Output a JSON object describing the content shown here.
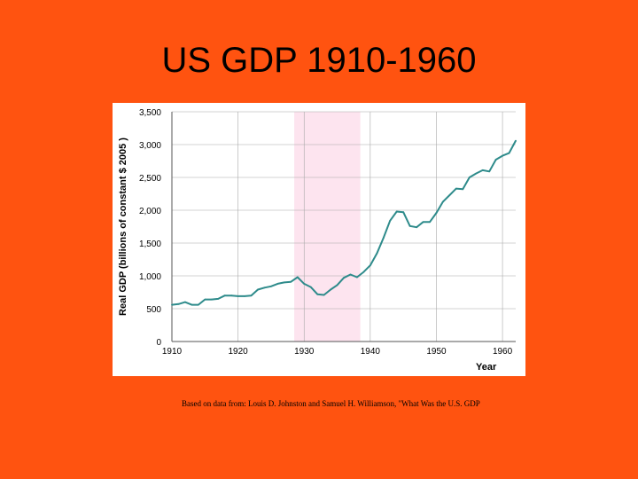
{
  "slide": {
    "title": "US GDP 1910-1960",
    "source_note": "Based on data from: Louis D. Johnston and Samuel H. Williamson, \"What Was the U.S. GDP"
  },
  "colors": {
    "background": "#ff5310",
    "line": "#2e8b8b",
    "shade": "#fde4ef",
    "grid": "#a8a8a8"
  },
  "chart_data": {
    "type": "line",
    "title": "",
    "xlabel": "Year",
    "ylabel": "Real GDP (billions of constant $ 2005 )",
    "xlim": [
      1910,
      1962
    ],
    "ylim": [
      0,
      3500
    ],
    "xticks": [
      1910,
      1920,
      1930,
      1940,
      1950,
      1960
    ],
    "yticks": [
      0,
      500,
      1000,
      1500,
      2000,
      2500,
      3000,
      3500
    ],
    "ytick_labels": [
      "0",
      "500",
      "1,000",
      "1,500",
      "2,000",
      "2,500",
      "3,000",
      "3,500"
    ],
    "grid": true,
    "shaded_region": {
      "from": 1928.5,
      "to": 1938.5
    },
    "series": [
      {
        "name": "Real GDP",
        "x": [
          1910,
          1911,
          1912,
          1913,
          1914,
          1915,
          1916,
          1917,
          1918,
          1919,
          1920,
          1921,
          1922,
          1923,
          1924,
          1925,
          1926,
          1927,
          1928,
          1929,
          1930,
          1931,
          1932,
          1933,
          1934,
          1935,
          1936,
          1937,
          1938,
          1939,
          1940,
          1941,
          1942,
          1943,
          1944,
          1945,
          1946,
          1947,
          1948,
          1949,
          1950,
          1951,
          1952,
          1953,
          1954,
          1955,
          1956,
          1957,
          1958,
          1959,
          1960,
          1961,
          1962
        ],
        "values": [
          560,
          570,
          600,
          560,
          560,
          640,
          640,
          650,
          700,
          700,
          690,
          690,
          700,
          790,
          820,
          840,
          880,
          900,
          910,
          980,
          880,
          830,
          720,
          710,
          790,
          860,
          970,
          1020,
          980,
          1060,
          1160,
          1340,
          1580,
          1840,
          1980,
          1970,
          1760,
          1740,
          1820,
          1820,
          1960,
          2130,
          2230,
          2330,
          2320,
          2500,
          2560,
          2610,
          2590,
          2770,
          2830,
          2870,
          3060
        ]
      }
    ]
  }
}
